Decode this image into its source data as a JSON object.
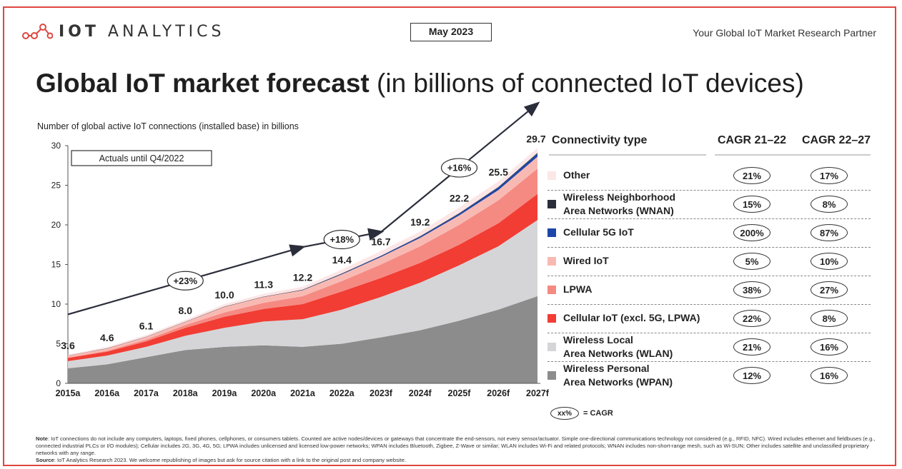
{
  "header": {
    "brand": "IOT ANALYTICS",
    "brand_bold": "IOT",
    "brand_light": "ANALYTICS",
    "date": "May 2023",
    "tagline": "Your Global IoT Market Research Partner"
  },
  "title": {
    "bold": "Global IoT market forecast",
    "rest": "(in billions of connected IoT devices)"
  },
  "subtitle": "Number of global active IoT connections (installed base) in billions",
  "chart_data": {
    "type": "area",
    "stacked": true,
    "categories": [
      "2015a",
      "2016a",
      "2017a",
      "2018a",
      "2019a",
      "2020a",
      "2021a",
      "2022a",
      "2023f",
      "2024f",
      "2025f",
      "2026f",
      "2027f"
    ],
    "ylim": [
      0,
      30
    ],
    "yticks": [
      0,
      5,
      10,
      15,
      20,
      25,
      30
    ],
    "totals": [
      3.6,
      4.6,
      6.1,
      8.0,
      10.0,
      11.3,
      12.2,
      14.4,
      16.7,
      19.2,
      22.2,
      25.5,
      29.7
    ],
    "total_labels": [
      "3.6",
      "4.6",
      "6.1",
      "8.0",
      "10.0",
      "11.3",
      "12.2",
      "14.4",
      "16.7",
      "19.2",
      "22.2",
      "25.5",
      "29.7"
    ],
    "series": [
      {
        "name": "Wireless Personal Area Networks (WPAN)",
        "color": "#8c8c8c",
        "values": [
          1.9,
          2.4,
          3.3,
          4.2,
          4.6,
          4.8,
          4.6,
          5.0,
          5.8,
          6.7,
          7.9,
          9.3,
          11.0
        ]
      },
      {
        "name": "Wireless Local Area Networks (WLAN)",
        "color": "#d5d5d8",
        "values": [
          0.9,
          1.1,
          1.3,
          1.8,
          2.4,
          3.0,
          3.5,
          4.3,
          5.1,
          6.0,
          7.0,
          8.0,
          9.6
        ]
      },
      {
        "name": "Cellular IoT (excl. 5G, LPWA)",
        "color": "#f13d34",
        "values": [
          0.4,
          0.5,
          0.7,
          1.0,
          1.4,
          1.6,
          1.9,
          2.3,
          2.4,
          2.5,
          2.6,
          2.9,
          3.3
        ]
      },
      {
        "name": "LPWA",
        "color": "#f58a83",
        "values": [
          0.05,
          0.1,
          0.2,
          0.35,
          0.55,
          0.75,
          1.0,
          1.3,
          1.7,
          2.1,
          2.5,
          2.9,
          3.2
        ]
      },
      {
        "name": "Wired IoT",
        "color": "#f9b9b3",
        "values": [
          0.25,
          0.3,
          0.35,
          0.4,
          0.7,
          0.75,
          0.75,
          0.85,
          0.95,
          1.05,
          1.2,
          1.3,
          1.5
        ]
      },
      {
        "name": "Cellular 5G IoT",
        "color": "#1d46a8",
        "values": [
          0,
          0,
          0,
          0,
          0,
          0,
          0.02,
          0.06,
          0.1,
          0.15,
          0.2,
          0.3,
          0.4
        ]
      },
      {
        "name": "Wireless Neighborhood Area Networks (WNAN)",
        "color": "#2a2d3a",
        "values": [
          0.02,
          0.02,
          0.03,
          0.03,
          0.04,
          0.05,
          0.05,
          0.06,
          0.06,
          0.07,
          0.08,
          0.08,
          0.09
        ]
      },
      {
        "name": "Other",
        "color": "#fde6e6",
        "values": [
          0.08,
          0.18,
          0.22,
          0.22,
          0.31,
          0.35,
          0.38,
          0.49,
          0.59,
          0.58,
          0.72,
          0.72,
          0.61
        ]
      }
    ],
    "trend_arrows": [
      {
        "label": "+23%",
        "from": [
          2015,
          8.7
        ],
        "to": [
          2021,
          17.2
        ]
      },
      {
        "label": "+18%",
        "from": [
          2021,
          17.2
        ],
        "to": [
          2023,
          19.1
        ]
      },
      {
        "label": "+16%",
        "from": [
          2023,
          19.1
        ],
        "to": [
          2027,
          35.3
        ]
      }
    ],
    "annotation": "Actuals until Q4/2022",
    "legend": {
      "header": "Connectivity type",
      "col1": "CAGR 21–22",
      "col2": "CAGR 22–27",
      "rows": [
        {
          "label": "Other",
          "label2": "",
          "color": "#fde6e6",
          "c1": "21%",
          "c2": "17%"
        },
        {
          "label": "Wireless Neighborhood",
          "label2": "Area Networks (WNAN)",
          "color": "#2a2d3a",
          "c1": "15%",
          "c2": "8%"
        },
        {
          "label": "Cellular 5G IoT",
          "label2": "",
          "color": "#1d46a8",
          "c1": "200%",
          "c2": "87%"
        },
        {
          "label": "Wired IoT",
          "label2": "",
          "color": "#f9b9b3",
          "c1": "5%",
          "c2": "10%"
        },
        {
          "label": "LPWA",
          "label2": "",
          "color": "#f58a83",
          "c1": "38%",
          "c2": "27%"
        },
        {
          "label": "Cellular IoT (excl. 5G, LPWA)",
          "label2": "",
          "color": "#f13d34",
          "c1": "22%",
          "c2": "8%"
        },
        {
          "label": "Wireless Local",
          "label2": "Area Networks (WLAN)",
          "color": "#d5d5d8",
          "c1": "21%",
          "c2": "16%"
        },
        {
          "label": "Wireless Personal",
          "label2": "Area Networks (WPAN)",
          "color": "#8c8c8c",
          "c1": "12%",
          "c2": "16%"
        }
      ]
    },
    "cagr_key": {
      "symbol": "xx%",
      "text": "= CAGR"
    }
  },
  "notes": {
    "note_label": "Note",
    "note": ": IoT connections do not include any computers, laptops, fixed phones, cellphones, or consumers tablets. Counted are active nodes/devices or gateways that concentrate the end-sensors, not every sensor/actuator. Simple one-directional communications technology not considered (e.g., RFID, NFC). Wired includes ethernet and fieldbuses (e.g., connected industrial PLCs or I/O modules); Cellular includes 2G, 3G, 4G, 5G; LPWA includes unlicensed and licensed low-power networks; WPAN includes Bluetooth, Zigbee, Z-Wave or similar; WLAN includes Wi-Fi and related protocols; WNAN includes non-short-range mesh, such as Wi-SUN; Other includes satellite and unclassified proprietary networks with any range.",
    "source_label": "Source",
    "source": ": IoT Analytics Research 2023. We welcome republishing of images but ask for source citation with a link to the original post and company website."
  },
  "colors": {
    "frame": "#e0463f",
    "arrow": "#2a2d3a",
    "logo": "#e0463f"
  }
}
